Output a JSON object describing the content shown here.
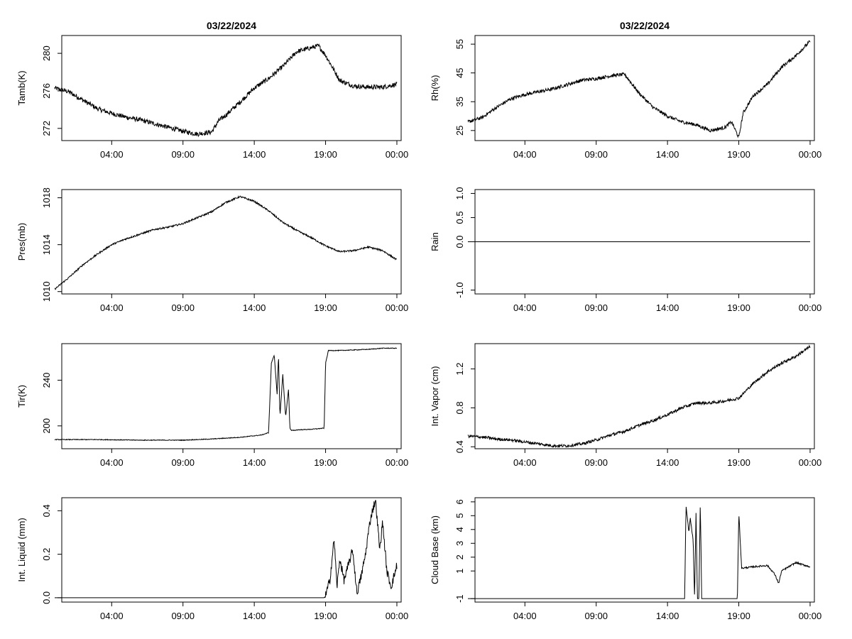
{
  "figure": {
    "layout": "4 rows x 2 columns"
  },
  "chart_data": [
    {
      "id": "tamb",
      "type": "line",
      "title": "03/22/2024",
      "ylabel": "Tamb(K)",
      "x_tick_labels": [
        "04:00",
        "09:00",
        "14:00",
        "19:00",
        "00:00"
      ],
      "x_ticks": [
        4,
        9,
        14,
        19,
        24
      ],
      "xlim": [
        0,
        24
      ],
      "y_tick_labels": [
        "272",
        "276",
        "280"
      ],
      "y_ticks": [
        272,
        276,
        280
      ],
      "ylim": [
        270.7,
        281.9
      ],
      "noise": 0.25,
      "series": [
        {
          "name": "Tamb",
          "x": [
            0,
            1,
            2,
            3,
            4,
            5,
            6,
            7,
            8,
            9,
            10,
            11,
            11.5,
            12,
            13,
            14,
            15,
            16,
            17,
            18,
            18.5,
            19,
            20,
            21,
            22,
            23,
            24
          ],
          "y": [
            276.3,
            275.9,
            275.0,
            274.1,
            273.6,
            273.2,
            272.9,
            272.5,
            272.1,
            271.7,
            271.4,
            271.6,
            272.8,
            273.4,
            274.8,
            276.3,
            277.3,
            278.6,
            280.2,
            280.6,
            280.8,
            279.8,
            277.1,
            276.5,
            276.4,
            276.4,
            276.7
          ]
        }
      ]
    },
    {
      "id": "rh",
      "type": "line",
      "title": "03/22/2024",
      "ylabel": "Rh(%)",
      "x_tick_labels": [
        "04:00",
        "09:00",
        "14:00",
        "19:00",
        "00:00"
      ],
      "x_ticks": [
        4,
        9,
        14,
        19,
        24
      ],
      "xlim": [
        0,
        24
      ],
      "y_tick_labels": [
        "25",
        "35",
        "45",
        "55"
      ],
      "y_ticks": [
        25,
        35,
        45,
        55
      ],
      "ylim": [
        21.5,
        58
      ],
      "noise": 0.6,
      "series": [
        {
          "name": "Rh",
          "x": [
            0,
            1,
            2,
            3,
            4,
            5,
            6,
            7,
            8,
            9,
            10,
            11,
            12,
            13,
            14,
            15,
            16,
            17,
            18,
            18.5,
            19,
            19.3,
            20,
            21,
            22,
            23,
            24
          ],
          "y": [
            28,
            29.5,
            33,
            36,
            37.5,
            38.5,
            39.5,
            41,
            42.5,
            43,
            44,
            44.5,
            38,
            33,
            30,
            28,
            27,
            25,
            26,
            28,
            22.5,
            31,
            37,
            41,
            47,
            51,
            56
          ]
        }
      ]
    },
    {
      "id": "pres",
      "type": "line",
      "ylabel": "Pres(mb)",
      "x_tick_labels": [
        "04:00",
        "09:00",
        "14:00",
        "19:00",
        "00:00"
      ],
      "x_ticks": [
        4,
        9,
        14,
        19,
        24
      ],
      "xlim": [
        0,
        24
      ],
      "y_tick_labels": [
        "1010",
        "1014",
        "1018"
      ],
      "y_ticks": [
        1010,
        1014,
        1018
      ],
      "ylim": [
        1009.8,
        1018.7
      ],
      "noise": 0.07,
      "series": [
        {
          "name": "Pres",
          "x": [
            0,
            1,
            2,
            3,
            4,
            5,
            6,
            7,
            8,
            9,
            10,
            11,
            12,
            13,
            14,
            15,
            16,
            17,
            18,
            19,
            20,
            21,
            22,
            23,
            24
          ],
          "y": [
            1010.2,
            1011.2,
            1012.3,
            1013.2,
            1014.0,
            1014.5,
            1014.9,
            1015.3,
            1015.5,
            1015.8,
            1016.3,
            1016.8,
            1017.6,
            1018.1,
            1017.7,
            1016.9,
            1015.9,
            1015.2,
            1014.6,
            1013.9,
            1013.4,
            1013.5,
            1013.8,
            1013.5,
            1012.7
          ]
        }
      ]
    },
    {
      "id": "rain",
      "type": "line",
      "ylabel": "Rain",
      "x_tick_labels": [
        "04:00",
        "09:00",
        "14:00",
        "19:00",
        "00:00"
      ],
      "x_ticks": [
        4,
        9,
        14,
        19,
        24
      ],
      "xlim": [
        0,
        24
      ],
      "y_tick_labels": [
        "-1.0",
        "0.0",
        "0.5",
        "1.0"
      ],
      "y_ticks": [
        -1.0,
        0.0,
        0.5,
        1.0
      ],
      "ylim": [
        -1.08,
        1.08
      ],
      "noise": 0,
      "series": [
        {
          "name": "Rain",
          "x": [
            0,
            24
          ],
          "y": [
            0,
            0
          ]
        }
      ]
    },
    {
      "id": "tir",
      "type": "line",
      "ylabel": "Tir(K)",
      "x_tick_labels": [
        "04:00",
        "09:00",
        "14:00",
        "19:00",
        "00:00"
      ],
      "x_ticks": [
        4,
        9,
        14,
        19,
        24
      ],
      "xlim": [
        0,
        24
      ],
      "y_tick_labels": [
        "200",
        "240"
      ],
      "y_ticks": [
        200,
        240
      ],
      "ylim": [
        180,
        272
      ],
      "noise": 0.3,
      "series": [
        {
          "name": "Tir",
          "x": [
            0,
            3,
            6,
            9,
            11,
            13,
            14.5,
            15.0,
            15.2,
            15.4,
            15.6,
            15.7,
            15.8,
            16.0,
            16.2,
            16.4,
            16.5,
            16.6,
            16.8,
            17,
            18,
            18.9,
            19.0,
            19.2,
            20,
            21,
            22,
            23,
            24
          ],
          "y": [
            188,
            188,
            187.5,
            187.5,
            188.5,
            190,
            192,
            194,
            255,
            262,
            228,
            262,
            208,
            245,
            208,
            232,
            198,
            196,
            196,
            196.5,
            197,
            198,
            255,
            266,
            266,
            266.5,
            267,
            268,
            268
          ]
        }
      ]
    },
    {
      "id": "vapor",
      "type": "line",
      "ylabel": "Int. Vapor (cm)",
      "x_tick_labels": [
        "04:00",
        "09:00",
        "14:00",
        "19:00",
        "00:00"
      ],
      "x_ticks": [
        4,
        9,
        14,
        19,
        24
      ],
      "xlim": [
        0,
        24
      ],
      "y_tick_labels": [
        "0.4",
        "0.8",
        "1.2"
      ],
      "y_ticks": [
        0.4,
        0.8,
        1.2
      ],
      "ylim": [
        0.38,
        1.46
      ],
      "noise": 0.015,
      "series": [
        {
          "name": "Int. Vapor",
          "x": [
            0,
            1,
            2,
            3,
            4,
            5,
            6,
            7,
            8,
            9,
            10,
            11,
            12,
            13,
            14,
            15,
            16,
            17,
            18,
            19,
            20,
            21,
            22,
            23,
            24
          ],
          "y": [
            0.51,
            0.5,
            0.48,
            0.47,
            0.45,
            0.43,
            0.41,
            0.41,
            0.43,
            0.47,
            0.52,
            0.56,
            0.62,
            0.67,
            0.73,
            0.8,
            0.85,
            0.85,
            0.87,
            0.9,
            1.05,
            1.17,
            1.26,
            1.33,
            1.43
          ]
        }
      ]
    },
    {
      "id": "liquid",
      "type": "line",
      "ylabel": "Int. Liquid (mm)",
      "x_tick_labels": [
        "04:00",
        "09:00",
        "14:00",
        "19:00",
        "00:00"
      ],
      "x_ticks": [
        4,
        9,
        14,
        19,
        24
      ],
      "xlim": [
        0,
        24
      ],
      "y_tick_labels": [
        "0.0",
        "0.2",
        "0.4"
      ],
      "y_ticks": [
        0.0,
        0.2,
        0.4
      ],
      "ylim": [
        -0.02,
        0.46
      ],
      "noise": 0.02,
      "series": [
        {
          "name": "Int. Liquid",
          "x": [
            0,
            5,
            10,
            15,
            18.9,
            19.0,
            19.3,
            19.6,
            19.8,
            20.0,
            20.3,
            20.6,
            20.9,
            21.2,
            21.5,
            21.8,
            22.0,
            22.2,
            22.5,
            22.8,
            23.0,
            23.3,
            23.6,
            24
          ],
          "y": [
            0,
            0,
            0,
            0,
            0,
            0.01,
            0.08,
            0.27,
            0.05,
            0.18,
            0.08,
            0.15,
            0.22,
            0.02,
            0.1,
            0.2,
            0.3,
            0.38,
            0.45,
            0.22,
            0.35,
            0.12,
            0.05,
            0.15
          ]
        }
      ]
    },
    {
      "id": "cloudbase",
      "type": "line",
      "ylabel": "Cloud Base (km)",
      "x_tick_labels": [
        "04:00",
        "09:00",
        "14:00",
        "19:00",
        "00:00"
      ],
      "x_ticks": [
        4,
        9,
        14,
        19,
        24
      ],
      "xlim": [
        0,
        24
      ],
      "y_tick_labels": [
        "-1",
        "1",
        "2",
        "3",
        "4",
        "5",
        "6"
      ],
      "y_ticks": [
        -1,
        1,
        2,
        3,
        4,
        5,
        6
      ],
      "ylim": [
        -1.25,
        6.3
      ],
      "noise": 0.06,
      "series": [
        {
          "name": "Cloud Base",
          "x": [
            0,
            15.2,
            15.3,
            15.5,
            15.6,
            15.8,
            15.9,
            16.0,
            16.1,
            16.2,
            16.3,
            16.4,
            16.5,
            17,
            18.9,
            19.0,
            19.2,
            20,
            21,
            21.5,
            21.8,
            22,
            22.5,
            23,
            24
          ],
          "y": [
            -1,
            -1,
            5.7,
            3.8,
            4.8,
            3.2,
            -1,
            5.2,
            -1,
            -1,
            6,
            -1,
            -1,
            -1,
            -1,
            5.2,
            1.2,
            1.3,
            1.4,
            0.8,
            0.1,
            1.0,
            1.3,
            1.6,
            1.3
          ]
        }
      ]
    }
  ]
}
